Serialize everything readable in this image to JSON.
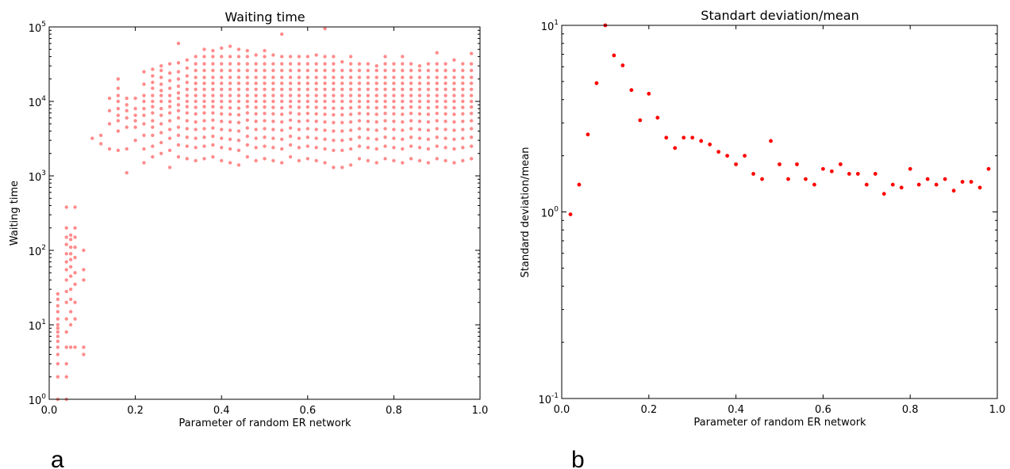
{
  "panels": [
    {
      "letter": "a"
    },
    {
      "letter": "b"
    }
  ],
  "colors": {
    "marker": "#ff0000",
    "axes": "#000000",
    "background": "#ffffff"
  },
  "chart_data": [
    {
      "type": "scatter",
      "title": "Waiting time",
      "xlabel": "Parameter of random ER network",
      "ylabel": "Waiting time",
      "xlim": [
        0,
        1.0
      ],
      "ylim": [
        1,
        100000
      ],
      "yscale": "log",
      "grid": false,
      "xticks": [
        "0.0",
        "0.2",
        "0.4",
        "0.6",
        "0.8",
        "1.0"
      ],
      "yticks": [
        {
          "base": "10",
          "exp": "0"
        },
        {
          "base": "10",
          "exp": "1"
        },
        {
          "base": "10",
          "exp": "2"
        },
        {
          "base": "10",
          "exp": "3"
        },
        {
          "base": "10",
          "exp": "4"
        },
        {
          "base": "10",
          "exp": "5"
        }
      ],
      "marker_alpha": 0.45,
      "series": [
        {
          "x": 0.02,
          "y": [
            1,
            2,
            3,
            4,
            5,
            6,
            7,
            8,
            9,
            10,
            12,
            15,
            18,
            22,
            26
          ]
        },
        {
          "x": 0.04,
          "y": [
            1,
            2,
            3,
            5,
            8,
            12,
            20,
            28,
            40,
            55,
            70,
            90,
            120,
            150,
            200,
            380
          ]
        },
        {
          "x": 0.05,
          "y": [
            5,
            10,
            15,
            22,
            30,
            45,
            60,
            75,
            90,
            110,
            140,
            160
          ]
        },
        {
          "x": 0.06,
          "y": [
            5,
            12,
            20,
            35,
            50,
            80,
            110,
            150,
            200,
            380
          ]
        },
        {
          "x": 0.08,
          "y": [
            4,
            5,
            40,
            55,
            100
          ]
        },
        {
          "x": 0.1,
          "y": [
            3200
          ]
        },
        {
          "x": 0.12,
          "y": [
            2700,
            3500
          ]
        },
        {
          "x": 0.14,
          "y": [
            2300,
            5000,
            7500,
            11000
          ]
        },
        {
          "x": 0.16,
          "y": [
            2200,
            4000,
            5500,
            6500,
            8000,
            10000,
            12000,
            15000,
            20000
          ]
        },
        {
          "x": 0.18,
          "y": [
            1100,
            2300,
            4500,
            6000,
            7500,
            9000,
            11000
          ]
        },
        {
          "x": 0.2,
          "y": [
            3000,
            4500,
            5500,
            6500,
            8000,
            11000
          ]
        },
        {
          "x": 0.22,
          "y": [
            1500,
            2300,
            3500,
            5000,
            6500,
            8000,
            10000,
            12000,
            17000,
            25000
          ]
        },
        {
          "x": 0.24,
          "y": [
            1800,
            2500,
            3500,
            4500,
            5500,
            7000,
            8500,
            10000,
            12000,
            15000,
            18000,
            22000,
            27000
          ]
        },
        {
          "x": 0.26,
          "y": [
            2000,
            2800,
            3800,
            5000,
            6500,
            8000,
            10000,
            12000,
            14000,
            17000,
            21000,
            26000,
            30000
          ]
        },
        {
          "x": 0.28,
          "y": [
            1300,
            2200,
            3200,
            4200,
            5500,
            7000,
            8500,
            10000,
            12000,
            15000,
            19000,
            24000,
            32000
          ]
        },
        {
          "x": 0.3,
          "y": [
            1800,
            2600,
            3500,
            4500,
            6000,
            7500,
            9000,
            11000,
            13000,
            16000,
            20000,
            25000,
            33000,
            60000
          ]
        },
        {
          "x": 0.32,
          "y": [
            1700,
            2500,
            3300,
            4300,
            5500,
            7000,
            8500,
            10000,
            12000,
            14500,
            18000,
            22000,
            28000,
            36000
          ]
        },
        {
          "x": 0.34,
          "y": [
            1600,
            2400,
            3200,
            4200,
            5300,
            6800,
            8300,
            10000,
            12000,
            14500,
            17500,
            21000,
            26000,
            32000,
            40000
          ]
        },
        {
          "x": 0.36,
          "y": [
            1700,
            2500,
            3300,
            4300,
            5500,
            7000,
            8500,
            10000,
            12000,
            14500,
            17500,
            21000,
            26000,
            32000,
            40000,
            50000
          ]
        },
        {
          "x": 0.38,
          "y": [
            1800,
            2600,
            3400,
            4400,
            5600,
            7000,
            8500,
            10000,
            12000,
            14500,
            17500,
            21000,
            26000,
            32000,
            40000,
            48000
          ]
        },
        {
          "x": 0.4,
          "y": [
            1600,
            2400,
            3200,
            4200,
            5400,
            6800,
            8300,
            10000,
            12000,
            14500,
            17500,
            21000,
            26000,
            32000,
            40000,
            52000
          ]
        },
        {
          "x": 0.42,
          "y": [
            1500,
            2300,
            3100,
            4100,
            5300,
            6700,
            8200,
            10000,
            12000,
            14500,
            17500,
            21000,
            26000,
            32000,
            40000,
            55000
          ]
        },
        {
          "x": 0.44,
          "y": [
            1400,
            2200,
            3000,
            4000,
            5200,
            6600,
            8100,
            10000,
            12000,
            14500,
            17500,
            21000,
            26000,
            32000,
            40000,
            50000
          ]
        },
        {
          "x": 0.46,
          "y": [
            1800,
            2600,
            3400,
            4400,
            5600,
            7000,
            8500,
            10000,
            12000,
            14500,
            17500,
            21000,
            26000,
            32000,
            40000,
            48000
          ]
        },
        {
          "x": 0.48,
          "y": [
            1600,
            2400,
            3200,
            4200,
            5400,
            6800,
            8300,
            10000,
            12000,
            14500,
            17500,
            21000,
            26000,
            32000,
            42000
          ]
        },
        {
          "x": 0.5,
          "y": [
            1700,
            2500,
            3300,
            4300,
            5500,
            6900,
            8400,
            10000,
            12000,
            14500,
            17500,
            21000,
            26000,
            32000,
            40000,
            48000
          ]
        },
        {
          "x": 0.52,
          "y": [
            1600,
            2400,
            3200,
            4200,
            5400,
            6800,
            8300,
            10000,
            12000,
            14500,
            17500,
            21000,
            26000,
            32000,
            42000
          ]
        },
        {
          "x": 0.54,
          "y": [
            1500,
            2300,
            3100,
            4100,
            5300,
            6700,
            8200,
            10000,
            12000,
            14500,
            17500,
            21000,
            26000,
            32000,
            40000,
            80000
          ]
        },
        {
          "x": 0.56,
          "y": [
            1800,
            2600,
            3400,
            4400,
            5600,
            7000,
            8500,
            10000,
            12000,
            14500,
            17500,
            21000,
            26000,
            32000,
            40000
          ]
        },
        {
          "x": 0.58,
          "y": [
            1600,
            2400,
            3200,
            4200,
            5400,
            6800,
            8300,
            10000,
            12000,
            14500,
            17500,
            21000,
            26000,
            32000,
            40000
          ]
        },
        {
          "x": 0.6,
          "y": [
            1700,
            2500,
            3300,
            4300,
            5500,
            6900,
            8400,
            10000,
            12000,
            14500,
            17500,
            21000,
            26000,
            32000,
            40000
          ]
        },
        {
          "x": 0.62,
          "y": [
            1600,
            2400,
            3200,
            4200,
            5400,
            6800,
            8300,
            10000,
            12000,
            14500,
            17500,
            21000,
            26000,
            32000,
            42000
          ]
        },
        {
          "x": 0.64,
          "y": [
            1500,
            2300,
            3100,
            4100,
            5300,
            6700,
            8200,
            10000,
            12000,
            14500,
            17500,
            21000,
            26000,
            32000,
            40000,
            95000
          ]
        },
        {
          "x": 0.66,
          "y": [
            1300,
            2200,
            3000,
            4000,
            5200,
            6600,
            8100,
            10000,
            12000,
            14500,
            17500,
            21000,
            26000,
            32000,
            40000
          ]
        },
        {
          "x": 0.68,
          "y": [
            1300,
            2200,
            3000,
            4000,
            5200,
            6600,
            8100,
            10000,
            12000,
            14500,
            17500,
            21000,
            26000,
            34000
          ]
        },
        {
          "x": 0.7,
          "y": [
            1400,
            2300,
            3100,
            4100,
            5300,
            6700,
            8200,
            10000,
            12000,
            14500,
            17500,
            21000,
            26000,
            32000,
            40000
          ]
        },
        {
          "x": 0.72,
          "y": [
            1700,
            2500,
            3300,
            4300,
            5500,
            6900,
            8400,
            10000,
            12000,
            14500,
            17500,
            21000,
            26000,
            32000
          ]
        },
        {
          "x": 0.74,
          "y": [
            1600,
            2400,
            3200,
            4200,
            5400,
            6800,
            8300,
            10000,
            12000,
            14500,
            17500,
            21000,
            26000,
            32000
          ]
        },
        {
          "x": 0.76,
          "y": [
            1500,
            2300,
            3100,
            4100,
            5300,
            6700,
            8200,
            10000,
            12000,
            14500,
            17500,
            21000,
            26000,
            30000
          ]
        },
        {
          "x": 0.78,
          "y": [
            1700,
            2500,
            3300,
            4300,
            5500,
            6900,
            8400,
            10000,
            12000,
            14500,
            17500,
            21000,
            26000,
            32000,
            40000
          ]
        },
        {
          "x": 0.8,
          "y": [
            1600,
            2400,
            3200,
            4200,
            5400,
            6800,
            8300,
            10000,
            12000,
            14500,
            17500,
            21000,
            26000,
            32000
          ]
        },
        {
          "x": 0.82,
          "y": [
            1500,
            2300,
            3100,
            4100,
            5300,
            6700,
            8200,
            10000,
            12000,
            14500,
            17500,
            21000,
            26000,
            32000,
            40000
          ]
        },
        {
          "x": 0.84,
          "y": [
            1700,
            2500,
            3300,
            4300,
            5500,
            6900,
            8400,
            10000,
            12000,
            14500,
            17500,
            21000,
            26000,
            32000
          ]
        },
        {
          "x": 0.86,
          "y": [
            1600,
            2400,
            3200,
            4200,
            5400,
            6800,
            8300,
            10000,
            12000,
            14500,
            17500,
            21000,
            26000,
            30000
          ]
        },
        {
          "x": 0.88,
          "y": [
            1500,
            2300,
            3100,
            4100,
            5300,
            6700,
            8200,
            10000,
            12000,
            14500,
            17500,
            21000,
            26000,
            32000
          ]
        },
        {
          "x": 0.9,
          "y": [
            1700,
            2500,
            3300,
            4300,
            5500,
            6900,
            8400,
            10000,
            12000,
            14500,
            17500,
            21000,
            26000,
            32000,
            45000
          ]
        },
        {
          "x": 0.92,
          "y": [
            1600,
            2400,
            3200,
            4200,
            5400,
            6800,
            8300,
            10000,
            12000,
            14500,
            17500,
            21000,
            26000,
            32000
          ]
        },
        {
          "x": 0.94,
          "y": [
            1500,
            2300,
            3100,
            4100,
            5300,
            6700,
            8200,
            10000,
            12000,
            14500,
            17500,
            21000,
            26000,
            36000
          ]
        },
        {
          "x": 0.96,
          "y": [
            1600,
            2400,
            3200,
            4200,
            5400,
            6800,
            8300,
            10000,
            12000,
            14500,
            17500,
            21000,
            26000,
            32000
          ]
        },
        {
          "x": 0.98,
          "y": [
            1700,
            2500,
            3300,
            4300,
            5500,
            6900,
            8400,
            10000,
            12000,
            14500,
            17500,
            21000,
            26000,
            32000,
            44000
          ]
        }
      ]
    },
    {
      "type": "scatter",
      "title": "Standart deviation/mean",
      "xlabel": "Parameter of random ER network",
      "ylabel": "Standard deviation/mean",
      "xlim": [
        0,
        1.0
      ],
      "ylim": [
        0.1,
        10
      ],
      "yscale": "log",
      "grid": false,
      "xticks": [
        "0.0",
        "0.2",
        "0.4",
        "0.6",
        "0.8",
        "1.0"
      ],
      "yticks": [
        {
          "base": "10",
          "exp": "-1"
        },
        {
          "base": "10",
          "exp": "0"
        },
        {
          "base": "10",
          "exp": "1"
        }
      ],
      "x": [
        0.02,
        0.04,
        0.06,
        0.08,
        0.1,
        0.12,
        0.14,
        0.16,
        0.18,
        0.2,
        0.22,
        0.24,
        0.26,
        0.28,
        0.3,
        0.32,
        0.34,
        0.36,
        0.38,
        0.4,
        0.42,
        0.44,
        0.46,
        0.48,
        0.5,
        0.52,
        0.54,
        0.56,
        0.58,
        0.6,
        0.62,
        0.64,
        0.66,
        0.68,
        0.7,
        0.72,
        0.74,
        0.76,
        0.78,
        0.8,
        0.82,
        0.84,
        0.86,
        0.88,
        0.9,
        0.92,
        0.94,
        0.96,
        0.98
      ],
      "y": [
        0.97,
        1.4,
        2.6,
        4.9,
        10,
        6.9,
        6.1,
        4.5,
        3.1,
        4.3,
        3.2,
        2.5,
        2.2,
        2.5,
        2.5,
        2.4,
        2.3,
        2.1,
        2.0,
        1.8,
        2.0,
        1.6,
        1.5,
        2.4,
        1.8,
        1.5,
        1.8,
        1.5,
        1.4,
        1.7,
        1.65,
        1.8,
        1.6,
        1.6,
        1.4,
        1.6,
        1.25,
        1.4,
        1.35,
        1.7,
        1.4,
        1.5,
        1.4,
        1.5,
        1.3,
        1.45,
        1.45,
        1.35,
        1.7
      ]
    }
  ]
}
